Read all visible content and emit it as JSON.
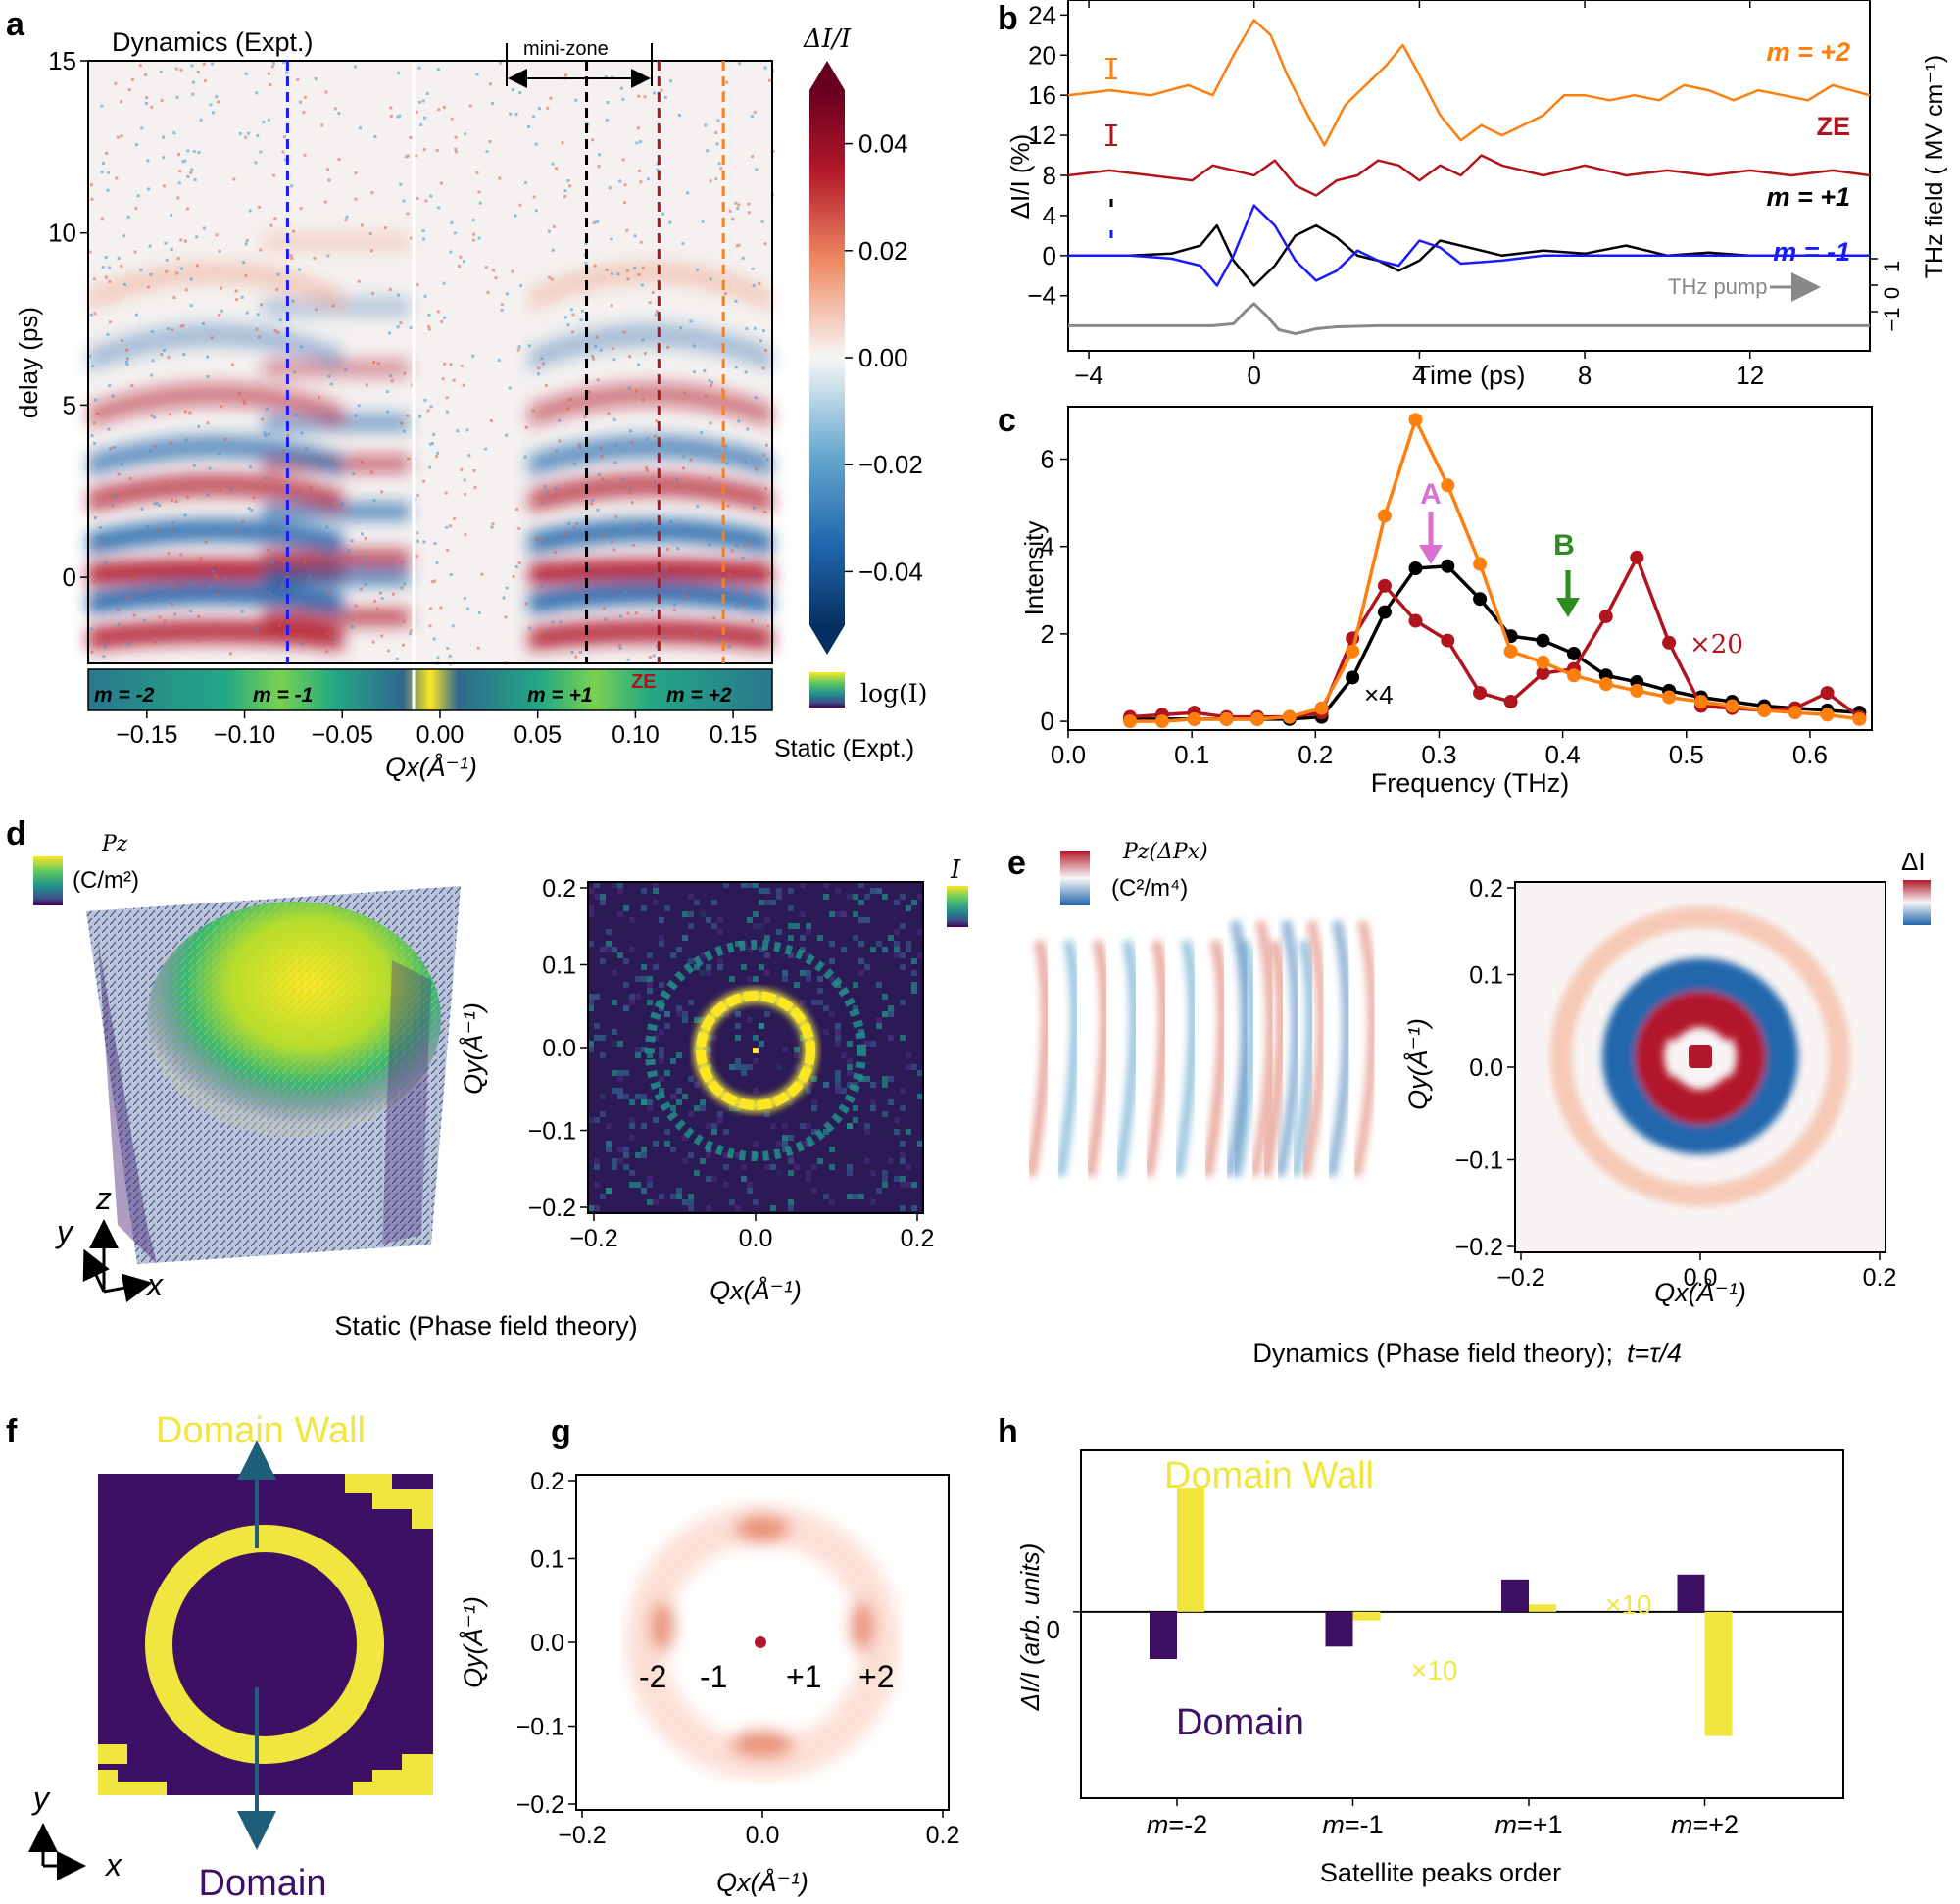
{
  "panel_labels": [
    "a",
    "b",
    "c",
    "d",
    "e",
    "f",
    "g",
    "h"
  ],
  "colors": {
    "orange": "#ff7f0e",
    "darkred": "#b0141c",
    "black": "#000000",
    "blue": "#1a1aff",
    "gray": "#888888",
    "yellow": "#f1e640",
    "purple": "#3d1064",
    "green": "#2e8b1f",
    "pink": "#d96fcf"
  },
  "panel_a": {
    "title": "Dynamics (Expt.)",
    "mini_zone": "mini-zone",
    "ylabel": "delay (ps)",
    "yticks": [
      "15",
      "10",
      "5",
      "0"
    ],
    "ytick_values": [
      15,
      10,
      5,
      0
    ],
    "xticks": [
      "−0.15",
      "−0.10",
      "−0.05",
      "0.00",
      "0.05",
      "0.10",
      "0.15"
    ],
    "xtick_values": [
      -0.15,
      -0.1,
      -0.05,
      0.0,
      0.05,
      0.1,
      0.15
    ],
    "xlabel": "Qx(Å⁻¹)",
    "cbar_title": "ΔI/I",
    "cbar_ticks": [
      "0.04",
      "0.02",
      "0.00",
      "−0.02",
      "−0.04"
    ],
    "cbar_tick_values": [
      0.04,
      0.02,
      0.0,
      -0.02,
      -0.04
    ],
    "static_m": [
      "m = -2",
      "m = -1",
      "m = +1",
      "m = +2"
    ],
    "ze": "ZE",
    "log_label": "log(I)",
    "static_label": "Static (Expt.)",
    "dashed_lines": [
      {
        "q": -0.078,
        "color": "#1a1aff"
      },
      {
        "q": 0.075,
        "color": "#000000"
      },
      {
        "q": 0.112,
        "color": "#b0141c"
      },
      {
        "q": 0.145,
        "color": "#ff7f0e"
      }
    ],
    "xlim": [
      -0.18,
      0.17
    ],
    "ylim": [
      -2.5,
      15
    ]
  },
  "chart_data": [
    {
      "panel": "b",
      "type": "line",
      "xlabel": "Time (ps)",
      "ylabel": "ΔI/I (%)",
      "y2label": "THz field ( MV cm⁻¹)",
      "xlim": [
        -4.5,
        14.9
      ],
      "ylim": [
        -9.5,
        25.5
      ],
      "xticks": [
        "−4",
        "0",
        "4",
        "8",
        "12"
      ],
      "xtick_values": [
        -4,
        0,
        4,
        8,
        12
      ],
      "yticks": [
        "24",
        "20",
        "16",
        "12",
        "8",
        "4",
        "0",
        "−4"
      ],
      "ytick_values": [
        24,
        20,
        16,
        12,
        8,
        4,
        0,
        -4
      ],
      "y2ticks": [
        "1",
        "0",
        "−1"
      ],
      "series": [
        {
          "name": "m = +2",
          "color": "#ff7f0e",
          "x": [
            -4.5,
            -3.5,
            -2.5,
            -1.6,
            -1.0,
            -0.5,
            0.0,
            0.4,
            0.8,
            1.3,
            1.7,
            2.2,
            2.7,
            3.2,
            3.6,
            4.0,
            4.5,
            5.0,
            5.5,
            6.0,
            6.5,
            7.0,
            7.5,
            8.0,
            8.6,
            9.2,
            9.8,
            10.4,
            11.0,
            11.6,
            12.2,
            12.8,
            13.4,
            14.0,
            14.9
          ],
          "y": [
            16,
            16.5,
            16,
            17,
            16,
            20,
            23.5,
            22,
            18,
            14,
            11,
            15,
            17,
            19,
            21,
            18,
            14,
            11.5,
            13,
            12,
            13,
            14,
            16,
            16,
            15.5,
            16,
            15.5,
            17,
            16.5,
            15.5,
            16.5,
            16,
            15.5,
            17,
            16
          ]
        },
        {
          "name": "ZE",
          "color": "#b0141c",
          "x": [
            -4.5,
            -3.5,
            -2.5,
            -1.5,
            -1.0,
            -0.5,
            0.0,
            0.5,
            1.0,
            1.5,
            2.0,
            2.5,
            3.0,
            3.5,
            4.0,
            4.5,
            5.0,
            5.5,
            6.0,
            7.0,
            8.0,
            9.0,
            10.0,
            11.0,
            12.0,
            13.0,
            14.0,
            14.9
          ],
          "y": [
            8,
            8.5,
            8,
            7.5,
            9,
            8.5,
            8,
            9.5,
            7,
            6,
            7.5,
            8,
            9.5,
            9,
            7.5,
            9,
            8,
            10,
            9,
            8,
            9,
            8,
            8.5,
            8,
            8.5,
            8,
            8.5,
            8
          ]
        },
        {
          "name": "m = +1",
          "color": "#000000",
          "x": [
            -4.5,
            -3.0,
            -2.0,
            -1.3,
            -0.9,
            -0.5,
            0.0,
            0.5,
            1.0,
            1.5,
            2.0,
            2.5,
            3.0,
            3.5,
            4.0,
            4.5,
            5.0,
            6.0,
            7.0,
            8.0,
            9.0,
            10.0,
            11.0,
            12.0,
            13.0,
            14.0,
            14.9
          ],
          "y": [
            0,
            0,
            0.2,
            1,
            3,
            -0.5,
            -3,
            -1,
            2,
            3,
            1.8,
            0,
            -0.5,
            -1.5,
            -0.5,
            1.5,
            1,
            0,
            0.5,
            0.2,
            1,
            0,
            0.3,
            0,
            0,
            0,
            0
          ]
        },
        {
          "name": "m = -1",
          "color": "#1a1aff",
          "x": [
            -4.5,
            -3.0,
            -2.0,
            -1.3,
            -0.9,
            -0.5,
            0.0,
            0.5,
            1.0,
            1.5,
            2.0,
            2.5,
            3.0,
            3.5,
            4.0,
            4.5,
            5.0,
            6.0,
            7.0,
            8.0,
            9.0,
            10.0,
            11.0,
            12.0,
            13.0,
            14.0,
            14.9
          ],
          "y": [
            0,
            0,
            -0.3,
            -1,
            -3,
            0,
            5,
            3,
            -0.5,
            -2.5,
            -1.5,
            0.5,
            -0.5,
            -1,
            1.5,
            0.8,
            -0.8,
            -0.5,
            0,
            0,
            0,
            0,
            0,
            0,
            0,
            0,
            0
          ]
        },
        {
          "name": "THz pump",
          "color": "#888888",
          "x": [
            -4.5,
            -2.0,
            -1.0,
            -0.5,
            -0.2,
            0.0,
            0.3,
            0.6,
            1.0,
            1.5,
            2.0,
            3.0,
            5.0,
            8.0,
            11.0,
            14.9
          ],
          "y": [
            -7,
            -7,
            -7,
            -6.8,
            -5.5,
            -4.8,
            -6,
            -7.4,
            -7.8,
            -7.3,
            -7.1,
            -7,
            -7,
            -7,
            -7,
            -7
          ]
        }
      ],
      "labels": [
        "m = +2",
        "ZE",
        "m = +1",
        "m = -1",
        "THz pump"
      ]
    },
    {
      "panel": "c",
      "type": "line",
      "xlabel": "Frequency (THz)",
      "ylabel": "Intensity",
      "xlim": [
        0,
        0.65
      ],
      "ylim": [
        -0.2,
        7.2
      ],
      "xticks": [
        "0.0",
        "0.1",
        "0.2",
        "0.3",
        "0.4",
        "0.5",
        "0.6"
      ],
      "xtick_values": [
        0,
        0.1,
        0.2,
        0.3,
        0.4,
        0.5,
        0.6
      ],
      "yticks": [
        "0",
        "2",
        "4",
        "6"
      ],
      "ytick_values": [
        0,
        2,
        4,
        6
      ],
      "x": [
        0.05,
        0.076,
        0.102,
        0.128,
        0.153,
        0.179,
        0.205,
        0.23,
        0.256,
        0.281,
        0.307,
        0.333,
        0.358,
        0.384,
        0.409,
        0.435,
        0.46,
        0.486,
        0.512,
        0.537,
        0.563,
        0.588,
        0.614,
        0.64
      ],
      "series": [
        {
          "name": "×4",
          "color": "#000000",
          "values": [
            0.05,
            0.05,
            0.05,
            0.05,
            0.05,
            0.05,
            0.1,
            1.0,
            2.5,
            3.5,
            3.55,
            2.8,
            1.95,
            1.85,
            1.55,
            1.05,
            0.9,
            0.7,
            0.55,
            0.45,
            0.35,
            0.3,
            0.25,
            0.2
          ]
        },
        {
          "name": "×20",
          "color": "#b0141c",
          "values": [
            0.1,
            0.15,
            0.2,
            0.1,
            0.1,
            0.1,
            0.2,
            1.9,
            3.1,
            2.3,
            1.85,
            0.65,
            0.45,
            1.1,
            1.2,
            2.4,
            3.75,
            1.8,
            0.35,
            0.3,
            0.25,
            0.3,
            0.65,
            0.1
          ]
        },
        {
          "name": "m=+2",
          "color": "#ff7f0e",
          "values": [
            0.0,
            0.0,
            0.05,
            0.05,
            0.05,
            0.1,
            0.3,
            1.6,
            4.7,
            6.9,
            5.4,
            3.6,
            1.6,
            1.35,
            1.05,
            0.85,
            0.7,
            0.55,
            0.45,
            0.35,
            0.25,
            0.2,
            0.15,
            0.05
          ]
        }
      ],
      "annotations": {
        "A": {
          "text": "A",
          "x": 0.28
        },
        "B": {
          "text": "B",
          "x": 0.395
        }
      },
      "labels": [
        "×4",
        "×20"
      ]
    },
    {
      "panel": "h",
      "type": "bar",
      "xlabel": "Satellite peaks order",
      "ylabel": "ΔI/I (arb. units)",
      "categories": [
        "m=-2",
        "m=-1",
        "m=+1",
        "m=+2"
      ],
      "ylim": [
        -1.5,
        1.3
      ],
      "ytick_values": [
        0
      ],
      "series": [
        {
          "name": "Domain",
          "color": "#3d1064",
          "values": [
            -0.38,
            -0.28,
            0.26,
            0.3
          ]
        },
        {
          "name": "Domain Wall",
          "color": "#f1e640",
          "values": [
            1.0,
            -0.07,
            0.06,
            -1.0
          ]
        }
      ],
      "annotations": [
        "×10",
        "×10"
      ]
    }
  ],
  "panel_d": {
    "cbar_title": "Pz",
    "cbar_unit": "(C/m²)",
    "axis_labels": [
      "z",
      "y",
      "x"
    ],
    "ylabel": "Qy(Å⁻¹)",
    "xlabel": "Qx(Å⁻¹)",
    "ticks": [
      "0.2",
      "0.1",
      "0.0",
      "−0.1",
      "−0.2"
    ],
    "xticks": [
      "−0.2",
      "0.0",
      "0.2"
    ],
    "i_label": "I",
    "caption": "Static (Phase field theory)"
  },
  "panel_e": {
    "cbar_title": "Pz(ΔPx)",
    "cbar_unit": "(C²/m⁴)",
    "di_label": "ΔI",
    "ylabel": "Qy(Å⁻¹)",
    "xlabel": "Qx(Å⁻¹)",
    "ticks": [
      "0.2",
      "0.1",
      "0.0",
      "−0.1",
      "−0.2"
    ],
    "xticks": [
      "−0.2",
      "0.0",
      "0.2"
    ],
    "caption": "Dynamics (Phase field theory);",
    "caption_t": "t=τ/4"
  },
  "panel_f": {
    "top_label": "Domain Wall",
    "bottom_label": "Domain",
    "axis_labels": [
      "y",
      "x"
    ]
  },
  "panel_g": {
    "ylabel": "Qy(Å⁻¹)",
    "xlabel": "Qx(Å⁻¹)",
    "ticks": [
      "0.2",
      "0.1",
      "0.0",
      "−0.1",
      "−0.2"
    ],
    "xticks": [
      "−0.2",
      "0.0",
      "0.2"
    ],
    "orders": [
      "-2",
      "-1",
      "+1",
      "+2"
    ]
  },
  "panel_h": {
    "dw_label": "Domain Wall",
    "domain_label": "Domain",
    "zero_tick": "0",
    "x10": "×10"
  }
}
